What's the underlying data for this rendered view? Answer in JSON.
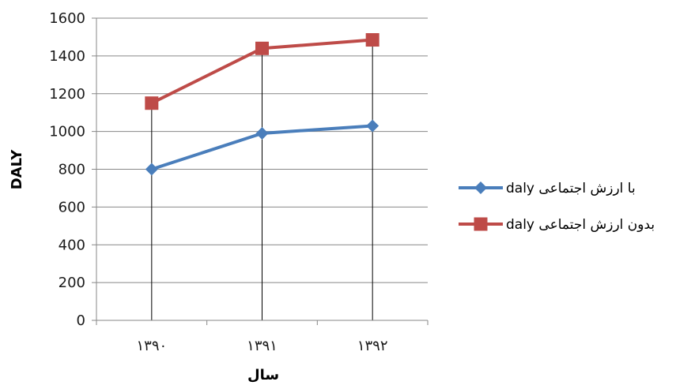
{
  "chart_data": {
    "type": "line",
    "title": "",
    "xlabel": "سال",
    "ylabel": "DALY",
    "categories": [
      "۱۳۹۰",
      "۱۳۹۱",
      "۱۳۹۲"
    ],
    "ylim": [
      0,
      1600
    ],
    "yticks": [
      0,
      200,
      400,
      600,
      800,
      1000,
      1200,
      1400,
      1600
    ],
    "ytick_labels": [
      "0",
      "200",
      "400",
      "600",
      "800",
      "1000",
      "1200",
      "1400",
      "1600"
    ],
    "grid": "horizontal",
    "drop_lines": true,
    "legend_position": "right",
    "series": [
      {
        "name": "daly با ارزش اجتماعی",
        "values": [
          800,
          990,
          1030
        ],
        "color": "#4a7ebb",
        "marker": "diamond"
      },
      {
        "name": "daly بدون ارزش اجتماعی",
        "values": [
          1150,
          1440,
          1485
        ],
        "color": "#be4b48",
        "marker": "square"
      }
    ]
  }
}
